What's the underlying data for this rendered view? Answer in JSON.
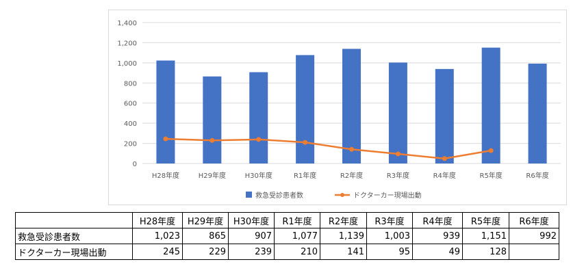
{
  "chart_data": {
    "type": "bar",
    "title": "",
    "xlabel": "",
    "ylabel": "",
    "categories": [
      "H28年度",
      "H29年度",
      "H30年度",
      "R1年度",
      "R2年度",
      "R3年度",
      "R4年度",
      "R5年度",
      "R6年度"
    ],
    "ylim": [
      0,
      1400
    ],
    "yticks": [
      "0",
      "200",
      "400",
      "600",
      "800",
      "1,000",
      "1,200",
      "1,400"
    ],
    "grid": true,
    "legend_position": "bottom",
    "series": [
      {
        "name": "救急受診患者数",
        "type": "bar",
        "color": "#4472c4",
        "values": [
          1023,
          865,
          907,
          1077,
          1139,
          1003,
          939,
          1151,
          992
        ]
      },
      {
        "name": "ドクターカー現場出動",
        "type": "line",
        "color": "#ed7d31",
        "values": [
          245,
          229,
          239,
          210,
          141,
          95,
          49,
          128,
          null
        ]
      }
    ]
  },
  "table": {
    "headers": [
      "",
      "H28年度",
      "H29年度",
      "H30年度",
      "R1年度",
      "R2年度",
      "R3年度",
      "R4年度",
      "R5年度",
      "R6年度"
    ],
    "rows": [
      {
        "label": "救急受診患者数",
        "cells": [
          "1,023",
          "865",
          "907",
          "1,077",
          "1,139",
          "1,003",
          "939",
          "1,151",
          "992"
        ]
      },
      {
        "label": "ドクターカー現場出動",
        "cells": [
          "245",
          "229",
          "239",
          "210",
          "141",
          "95",
          "49",
          "128",
          ""
        ]
      }
    ]
  }
}
